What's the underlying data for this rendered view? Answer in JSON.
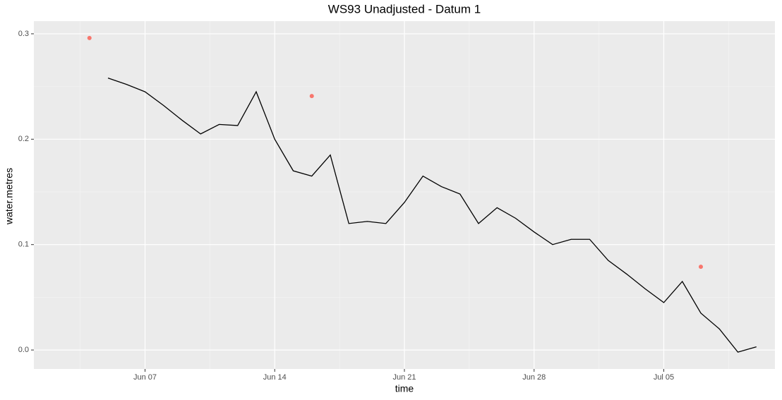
{
  "chart_data": {
    "type": "line",
    "title": "WS93 Unadjusted - Datum 1",
    "x_label": "time",
    "y_label": "water.metres",
    "xlim": [
      "Jun 01",
      "Jul 11"
    ],
    "xticks": [
      "Jun 07",
      "Jun 14",
      "Jun 21",
      "Jun 28",
      "Jul 05"
    ],
    "ylim": [
      -0.018,
      0.312
    ],
    "yticks": [
      {
        "value": 0,
        "label": "0.0"
      },
      0.1,
      0.2,
      0.3
    ],
    "grid": true,
    "minor_grid": true,
    "series": [
      {
        "type": "line",
        "color": "#000000",
        "x": [
          "Jun 05",
          "Jun 06",
          "Jun 07",
          "Jun 08",
          "Jun 09",
          "Jun 10",
          "Jun 11",
          "Jun 12",
          "Jun 13",
          "Jun 14",
          "Jun 15",
          "Jun 16",
          "Jun 17",
          "Jun 18",
          "Jun 19",
          "Jun 20",
          "Jun 21",
          "Jun 22",
          "Jun 23",
          "Jun 24",
          "Jun 25",
          "Jun 26",
          "Jun 27",
          "Jun 28",
          "Jun 29",
          "Jun 30",
          "Jul 01",
          "Jul 02",
          "Jul 03",
          "Jul 04",
          "Jul 05",
          "Jul 06",
          "Jul 07",
          "Jul 08",
          "Jul 09",
          "Jul 10"
        ],
        "values": [
          0.258,
          0.252,
          0.245,
          0.232,
          0.218,
          0.205,
          0.214,
          0.213,
          0.245,
          0.2,
          0.17,
          0.165,
          0.185,
          0.12,
          0.122,
          0.12,
          0.14,
          0.165,
          0.155,
          0.148,
          0.12,
          0.135,
          0.125,
          0.112,
          0.1,
          0.105,
          0.105,
          0.085,
          0.072,
          0.058,
          0.045,
          0.065,
          0.035,
          0.02,
          -0.002,
          0.003
        ]
      },
      {
        "type": "scatter",
        "color": "#F8766D",
        "x": [
          "Jun 04",
          "Jun 16",
          "Jul 07"
        ],
        "values": [
          0.296,
          0.241,
          0.079
        ]
      }
    ]
  }
}
